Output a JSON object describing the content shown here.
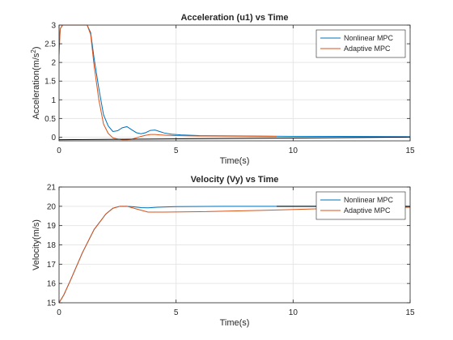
{
  "colors": {
    "nonlinear": "#0072BD",
    "adaptive": "#D95319",
    "grid": "#e6e6e6",
    "axis": "#262626",
    "reference": "#000000"
  },
  "chart_data": [
    {
      "type": "line",
      "title": "Acceleration (u1) vs Time",
      "xlabel": "Time(s)",
      "ylabel": "Acceleration(m/s",
      "ylabel_superscript": "2",
      "ylabel_suffix": ")",
      "xlim": [
        0,
        15
      ],
      "ylim": [
        -0.1,
        3
      ],
      "xticks": [
        0,
        5,
        10,
        15
      ],
      "yticks": [
        0,
        0.5,
        1,
        1.5,
        2,
        2.5,
        3
      ],
      "ytick_labels": [
        "0",
        "0.5",
        "1",
        "1.5",
        "2",
        "2.5",
        "3"
      ],
      "grid": true,
      "legend_position": "top-right",
      "series": [
        {
          "name": "Nonlinear MPC",
          "color": "#0072BD",
          "x": [
            0,
            0.05,
            0.15,
            1.2,
            1.35,
            1.5,
            1.7,
            1.9,
            2.1,
            2.3,
            2.5,
            2.7,
            2.9,
            3.1,
            3.3,
            3.5,
            3.7,
            3.9,
            4.1,
            4.3,
            4.5,
            4.8,
            5.2,
            6,
            8,
            10,
            12,
            15
          ],
          "y": [
            2.4,
            2.9,
            3.0,
            3.0,
            2.8,
            2.1,
            1.3,
            0.6,
            0.3,
            0.15,
            0.17,
            0.25,
            0.28,
            0.2,
            0.12,
            0.09,
            0.12,
            0.18,
            0.19,
            0.15,
            0.11,
            0.08,
            0.06,
            0.04,
            0.03,
            0.02,
            0.02,
            0.01
          ]
        },
        {
          "name": "Adaptive MPC",
          "color": "#D95319",
          "x": [
            0,
            0.05,
            0.15,
            1.2,
            1.35,
            1.5,
            1.7,
            1.9,
            2.1,
            2.3,
            2.5,
            2.7,
            2.9,
            3.1,
            3.3,
            3.5,
            3.7,
            3.9,
            4.1,
            4.3,
            4.6,
            5,
            6,
            9.3
          ],
          "y": [
            2.2,
            2.9,
            3.0,
            3.0,
            2.75,
            1.9,
            1.0,
            0.35,
            0.1,
            -0.02,
            -0.05,
            -0.07,
            -0.07,
            -0.06,
            -0.02,
            0.02,
            0.05,
            0.07,
            0.07,
            0.06,
            0.05,
            0.04,
            0.03,
            0.02
          ]
        },
        {
          "name": "",
          "color": "#000000",
          "x": [
            0,
            15
          ],
          "y": [
            -0.07,
            0.0
          ]
        }
      ]
    },
    {
      "type": "line",
      "title": "Velocity (Vy) vs Time",
      "xlabel": "Time(s)",
      "ylabel": "Velocity(m/s)",
      "xlim": [
        0,
        15
      ],
      "ylim": [
        15,
        21
      ],
      "xticks": [
        0,
        5,
        10,
        15
      ],
      "yticks": [
        15,
        16,
        17,
        18,
        19,
        20,
        21
      ],
      "ytick_labels": [
        "15",
        "16",
        "17",
        "18",
        "19",
        "20",
        "21"
      ],
      "grid": true,
      "legend_position": "top-right",
      "series": [
        {
          "name": "Nonlinear MPC",
          "color": "#0072BD",
          "x": [
            0,
            0.2,
            0.5,
            1.0,
            1.5,
            2.0,
            2.3,
            2.6,
            2.9,
            3.2,
            3.5,
            3.8,
            4.2,
            5,
            7,
            10,
            15
          ],
          "y": [
            15,
            15.4,
            16.2,
            17.6,
            18.8,
            19.6,
            19.9,
            20.0,
            20.0,
            19.97,
            19.93,
            19.92,
            19.95,
            19.98,
            20.0,
            20.0,
            20.0
          ]
        },
        {
          "name": "Adaptive MPC",
          "color": "#D95319",
          "x": [
            0,
            0.2,
            0.5,
            1.0,
            1.5,
            2.0,
            2.3,
            2.6,
            2.9,
            3.2,
            3.5,
            3.8,
            4.5,
            6,
            9,
            12,
            15
          ],
          "y": [
            15,
            15.4,
            16.2,
            17.6,
            18.8,
            19.6,
            19.9,
            20.0,
            20.0,
            19.9,
            19.8,
            19.7,
            19.7,
            19.72,
            19.8,
            19.9,
            19.95
          ]
        },
        {
          "name": "",
          "color": "#000000",
          "x": [
            9.3,
            15
          ],
          "y": [
            20.0,
            20.0
          ]
        }
      ]
    }
  ]
}
